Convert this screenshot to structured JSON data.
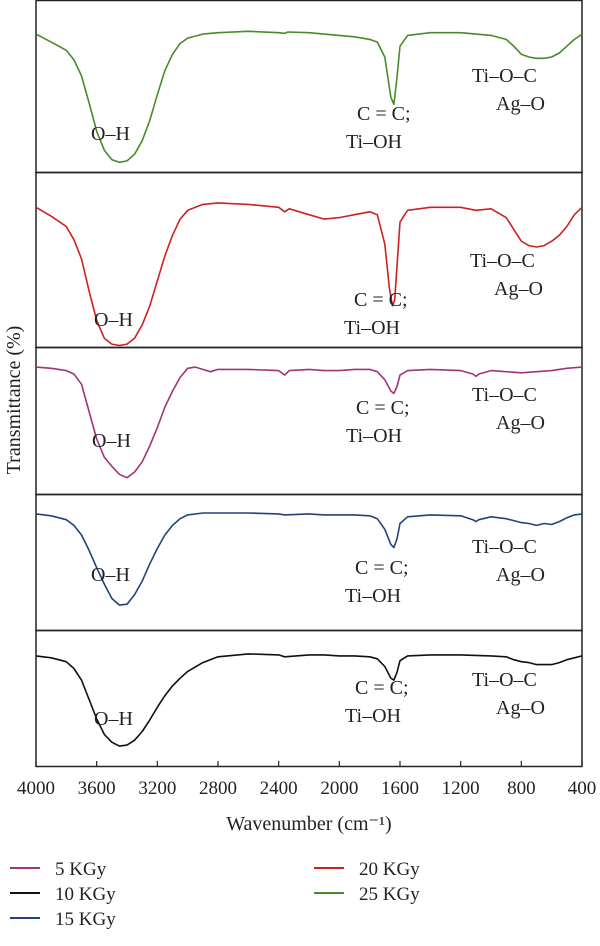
{
  "chart_data": {
    "type": "line",
    "xlabel": "Wavenumber (cm⁻¹)",
    "ylabel": "Transmittance (%)",
    "xlim": [
      4000,
      400
    ],
    "x_ticks": [
      "4000",
      "3600",
      "3200",
      "2800",
      "2400",
      "2000",
      "1600",
      "1200",
      "800",
      "400"
    ],
    "y_ticks": [],
    "grid": false,
    "layout": "stacked panels, one spectrum per panel",
    "legend_position": "bottom",
    "annotations": {
      "oh": "O–H",
      "cc": "C = C;",
      "tioh": "Ti–OH",
      "tioc": "Ti–O–C",
      "ago": "Ag–O"
    },
    "series": [
      {
        "name": "25 KGy",
        "color": "#4a8a2a",
        "points": [
          [
            4000,
            0.97
          ],
          [
            3900,
            0.91
          ],
          [
            3800,
            0.85
          ],
          [
            3750,
            0.78
          ],
          [
            3700,
            0.66
          ],
          [
            3650,
            0.46
          ],
          [
            3600,
            0.25
          ],
          [
            3550,
            0.11
          ],
          [
            3500,
            0.04
          ],
          [
            3450,
            0.02
          ],
          [
            3400,
            0.03
          ],
          [
            3350,
            0.08
          ],
          [
            3300,
            0.18
          ],
          [
            3250,
            0.33
          ],
          [
            3200,
            0.52
          ],
          [
            3150,
            0.7
          ],
          [
            3100,
            0.82
          ],
          [
            3050,
            0.9
          ],
          [
            3000,
            0.94
          ],
          [
            2900,
            0.97
          ],
          [
            2800,
            0.98
          ],
          [
            2600,
            0.99
          ],
          [
            2400,
            0.98
          ],
          [
            2360,
            0.975
          ],
          [
            2340,
            0.985
          ],
          [
            2200,
            0.98
          ],
          [
            2100,
            0.97
          ],
          [
            2000,
            0.96
          ],
          [
            1900,
            0.95
          ],
          [
            1800,
            0.93
          ],
          [
            1750,
            0.91
          ],
          [
            1700,
            0.8
          ],
          [
            1660,
            0.5
          ],
          [
            1640,
            0.45
          ],
          [
            1620,
            0.65
          ],
          [
            1600,
            0.88
          ],
          [
            1550,
            0.96
          ],
          [
            1400,
            0.98
          ],
          [
            1200,
            0.98
          ],
          [
            1000,
            0.96
          ],
          [
            900,
            0.93
          ],
          [
            850,
            0.88
          ],
          [
            800,
            0.82
          ],
          [
            750,
            0.8
          ],
          [
            700,
            0.79
          ],
          [
            650,
            0.79
          ],
          [
            600,
            0.8
          ],
          [
            550,
            0.83
          ],
          [
            500,
            0.88
          ],
          [
            450,
            0.93
          ],
          [
            400,
            0.97
          ]
        ]
      },
      {
        "name": "20 KGy",
        "color": "#cc2222",
        "points": [
          [
            4000,
            0.95
          ],
          [
            3900,
            0.89
          ],
          [
            3800,
            0.82
          ],
          [
            3750,
            0.73
          ],
          [
            3700,
            0.6
          ],
          [
            3650,
            0.38
          ],
          [
            3600,
            0.18
          ],
          [
            3550,
            0.06
          ],
          [
            3500,
            0.02
          ],
          [
            3450,
            0.01
          ],
          [
            3400,
            0.02
          ],
          [
            3350,
            0.06
          ],
          [
            3300,
            0.15
          ],
          [
            3250,
            0.28
          ],
          [
            3200,
            0.45
          ],
          [
            3150,
            0.62
          ],
          [
            3100,
            0.76
          ],
          [
            3050,
            0.87
          ],
          [
            3000,
            0.93
          ],
          [
            2900,
            0.97
          ],
          [
            2800,
            0.98
          ],
          [
            2600,
            0.97
          ],
          [
            2400,
            0.95
          ],
          [
            2360,
            0.92
          ],
          [
            2330,
            0.94
          ],
          [
            2200,
            0.9
          ],
          [
            2100,
            0.87
          ],
          [
            2000,
            0.88
          ],
          [
            1900,
            0.9
          ],
          [
            1800,
            0.92
          ],
          [
            1750,
            0.9
          ],
          [
            1700,
            0.7
          ],
          [
            1670,
            0.4
          ],
          [
            1650,
            0.28
          ],
          [
            1635,
            0.32
          ],
          [
            1620,
            0.55
          ],
          [
            1600,
            0.85
          ],
          [
            1550,
            0.93
          ],
          [
            1400,
            0.95
          ],
          [
            1200,
            0.95
          ],
          [
            1100,
            0.93
          ],
          [
            1000,
            0.94
          ],
          [
            900,
            0.88
          ],
          [
            850,
            0.8
          ],
          [
            800,
            0.72
          ],
          [
            750,
            0.69
          ],
          [
            700,
            0.68
          ],
          [
            650,
            0.69
          ],
          [
            600,
            0.72
          ],
          [
            550,
            0.76
          ],
          [
            500,
            0.82
          ],
          [
            450,
            0.9
          ],
          [
            400,
            0.95
          ]
        ]
      },
      {
        "name": "5 KGy",
        "color": "#a03478",
        "points": [
          [
            4000,
            0.99
          ],
          [
            3900,
            0.98
          ],
          [
            3800,
            0.96
          ],
          [
            3750,
            0.93
          ],
          [
            3700,
            0.84
          ],
          [
            3650,
            0.6
          ],
          [
            3600,
            0.36
          ],
          [
            3550,
            0.2
          ],
          [
            3500,
            0.12
          ],
          [
            3450,
            0.05
          ],
          [
            3400,
            0.02
          ],
          [
            3350,
            0.07
          ],
          [
            3300,
            0.16
          ],
          [
            3250,
            0.3
          ],
          [
            3200,
            0.46
          ],
          [
            3150,
            0.64
          ],
          [
            3100,
            0.78
          ],
          [
            3050,
            0.9
          ],
          [
            3000,
            0.98
          ],
          [
            2950,
            0.99
          ],
          [
            2900,
            0.97
          ],
          [
            2850,
            0.95
          ],
          [
            2800,
            0.97
          ],
          [
            2600,
            0.97
          ],
          [
            2400,
            0.96
          ],
          [
            2360,
            0.92
          ],
          [
            2330,
            0.96
          ],
          [
            2200,
            0.97
          ],
          [
            2100,
            0.96
          ],
          [
            2000,
            0.96
          ],
          [
            1900,
            0.97
          ],
          [
            1800,
            0.97
          ],
          [
            1750,
            0.95
          ],
          [
            1700,
            0.88
          ],
          [
            1660,
            0.78
          ],
          [
            1640,
            0.76
          ],
          [
            1620,
            0.82
          ],
          [
            1600,
            0.92
          ],
          [
            1550,
            0.96
          ],
          [
            1400,
            0.97
          ],
          [
            1200,
            0.96
          ],
          [
            1120,
            0.93
          ],
          [
            1100,
            0.91
          ],
          [
            1080,
            0.93
          ],
          [
            1000,
            0.96
          ],
          [
            900,
            0.95
          ],
          [
            800,
            0.94
          ],
          [
            700,
            0.95
          ],
          [
            600,
            0.96
          ],
          [
            500,
            0.98
          ],
          [
            400,
            0.99
          ]
        ]
      },
      {
        "name": "15 KGy",
        "color": "#23437a",
        "points": [
          [
            4000,
            0.98
          ],
          [
            3900,
            0.96
          ],
          [
            3800,
            0.92
          ],
          [
            3750,
            0.86
          ],
          [
            3700,
            0.76
          ],
          [
            3650,
            0.6
          ],
          [
            3600,
            0.42
          ],
          [
            3550,
            0.25
          ],
          [
            3500,
            0.1
          ],
          [
            3450,
            0.03
          ],
          [
            3400,
            0.04
          ],
          [
            3350,
            0.14
          ],
          [
            3300,
            0.28
          ],
          [
            3250,
            0.46
          ],
          [
            3200,
            0.62
          ],
          [
            3150,
            0.76
          ],
          [
            3100,
            0.86
          ],
          [
            3050,
            0.93
          ],
          [
            3000,
            0.97
          ],
          [
            2900,
            0.99
          ],
          [
            2800,
            0.99
          ],
          [
            2600,
            0.99
          ],
          [
            2400,
            0.98
          ],
          [
            2360,
            0.97
          ],
          [
            2200,
            0.98
          ],
          [
            2100,
            0.97
          ],
          [
            2000,
            0.97
          ],
          [
            1900,
            0.97
          ],
          [
            1800,
            0.96
          ],
          [
            1750,
            0.93
          ],
          [
            1700,
            0.82
          ],
          [
            1660,
            0.66
          ],
          [
            1640,
            0.63
          ],
          [
            1620,
            0.72
          ],
          [
            1600,
            0.88
          ],
          [
            1550,
            0.95
          ],
          [
            1400,
            0.97
          ],
          [
            1200,
            0.96
          ],
          [
            1120,
            0.92
          ],
          [
            1100,
            0.9
          ],
          [
            1080,
            0.92
          ],
          [
            1000,
            0.95
          ],
          [
            900,
            0.93
          ],
          [
            850,
            0.91
          ],
          [
            800,
            0.89
          ],
          [
            750,
            0.88
          ],
          [
            700,
            0.86
          ],
          [
            650,
            0.88
          ],
          [
            600,
            0.87
          ],
          [
            550,
            0.9
          ],
          [
            500,
            0.94
          ],
          [
            450,
            0.97
          ],
          [
            400,
            0.98
          ]
        ]
      },
      {
        "name": "10 KGy",
        "color": "#111111",
        "points": [
          [
            4000,
            0.95
          ],
          [
            3900,
            0.93
          ],
          [
            3800,
            0.89
          ],
          [
            3750,
            0.82
          ],
          [
            3700,
            0.7
          ],
          [
            3650,
            0.5
          ],
          [
            3600,
            0.3
          ],
          [
            3550,
            0.14
          ],
          [
            3500,
            0.06
          ],
          [
            3450,
            0.02
          ],
          [
            3400,
            0.03
          ],
          [
            3350,
            0.08
          ],
          [
            3300,
            0.17
          ],
          [
            3250,
            0.29
          ],
          [
            3200,
            0.42
          ],
          [
            3150,
            0.54
          ],
          [
            3100,
            0.64
          ],
          [
            3050,
            0.72
          ],
          [
            3000,
            0.79
          ],
          [
            2900,
            0.88
          ],
          [
            2800,
            0.94
          ],
          [
            2600,
            0.97
          ],
          [
            2400,
            0.96
          ],
          [
            2360,
            0.94
          ],
          [
            2200,
            0.96
          ],
          [
            2100,
            0.96
          ],
          [
            2000,
            0.95
          ],
          [
            1900,
            0.95
          ],
          [
            1800,
            0.94
          ],
          [
            1750,
            0.92
          ],
          [
            1700,
            0.84
          ],
          [
            1660,
            0.72
          ],
          [
            1640,
            0.7
          ],
          [
            1620,
            0.78
          ],
          [
            1600,
            0.9
          ],
          [
            1550,
            0.95
          ],
          [
            1400,
            0.96
          ],
          [
            1200,
            0.96
          ],
          [
            1000,
            0.95
          ],
          [
            900,
            0.94
          ],
          [
            850,
            0.91
          ],
          [
            800,
            0.89
          ],
          [
            750,
            0.88
          ],
          [
            700,
            0.86
          ],
          [
            650,
            0.86
          ],
          [
            600,
            0.86
          ],
          [
            550,
            0.88
          ],
          [
            500,
            0.91
          ],
          [
            450,
            0.93
          ],
          [
            400,
            0.95
          ]
        ]
      }
    ]
  },
  "legend": {
    "col1": [
      {
        "label": "5 KGy",
        "color": "#a03478"
      },
      {
        "label": "10 KGy",
        "color": "#111111"
      },
      {
        "label": "15 KGy",
        "color": "#23437a"
      }
    ],
    "col2": [
      {
        "label": "20 KGy",
        "color": "#cc2222"
      },
      {
        "label": "25 KGy",
        "color": "#4a8a2a"
      }
    ]
  }
}
